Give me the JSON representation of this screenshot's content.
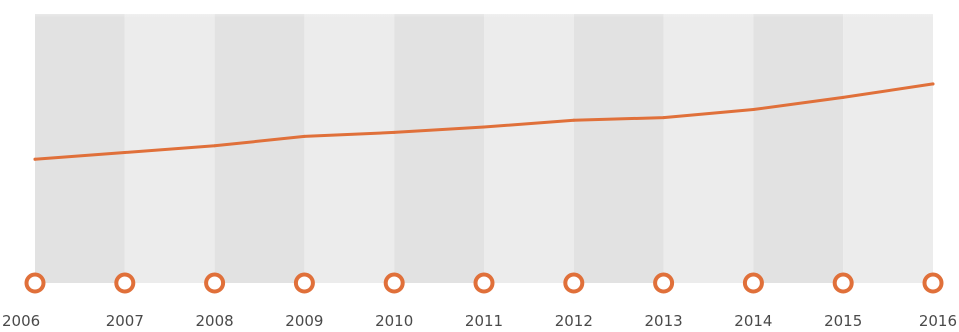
{
  "chart_data": {
    "type": "line",
    "title": "",
    "xlabel": "",
    "ylabel": "",
    "x": [
      "2006",
      "2007",
      "2008",
      "2009",
      "2010",
      "2011",
      "2012",
      "2013",
      "2014",
      "2015",
      "2016"
    ],
    "series": [
      {
        "values": [
          46,
          48.5,
          51,
          54.5,
          56,
          58,
          60.5,
          61.5,
          64.5,
          69,
          74
        ]
      }
    ],
    "ylim": [
      0,
      100
    ],
    "colors": {
      "line": "#e0703a",
      "marker_stroke": "#e0703a",
      "marker_fill": "#ffffff",
      "band_dark": "#e2e2e2",
      "band_light": "#ececec",
      "top_fade": "#f7f7f7"
    },
    "grid": false,
    "legend": "none"
  }
}
